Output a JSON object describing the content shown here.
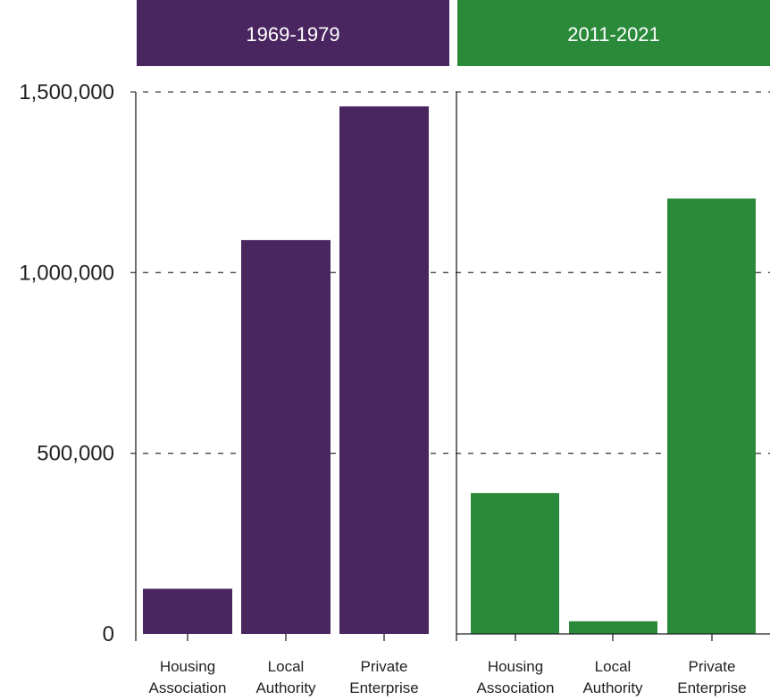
{
  "chart_data": {
    "type": "bar",
    "title": "",
    "xlabel": "",
    "ylabel": "",
    "ylim": [
      0,
      1500000
    ],
    "yticks": [
      {
        "value": 0,
        "label": "0"
      },
      {
        "value": 500000,
        "label": "500,000"
      },
      {
        "value": 1000000,
        "label": "1,000,000"
      },
      {
        "value": 1500000,
        "label": "1,500,000"
      }
    ],
    "grid": true,
    "panels": [
      {
        "header": "1969-1979",
        "color": "#4a2660",
        "categories": [
          "Housing Association",
          "Local Authority",
          "Private Enterprise"
        ],
        "category_lines": [
          [
            "Housing",
            "Association"
          ],
          [
            "Local",
            "Authority"
          ],
          [
            "Private",
            "Enterprise"
          ]
        ],
        "values": [
          125000,
          1090000,
          1460000
        ]
      },
      {
        "header": "2011-2021",
        "color": "#2a8a3a",
        "categories": [
          "Housing Association",
          "Local Authority",
          "Private Enterprise"
        ],
        "category_lines": [
          [
            "Housing",
            "Association"
          ],
          [
            "Local",
            "Authority"
          ],
          [
            "Private",
            "Enterprise"
          ]
        ],
        "values": [
          390000,
          35000,
          1205000
        ]
      }
    ]
  }
}
